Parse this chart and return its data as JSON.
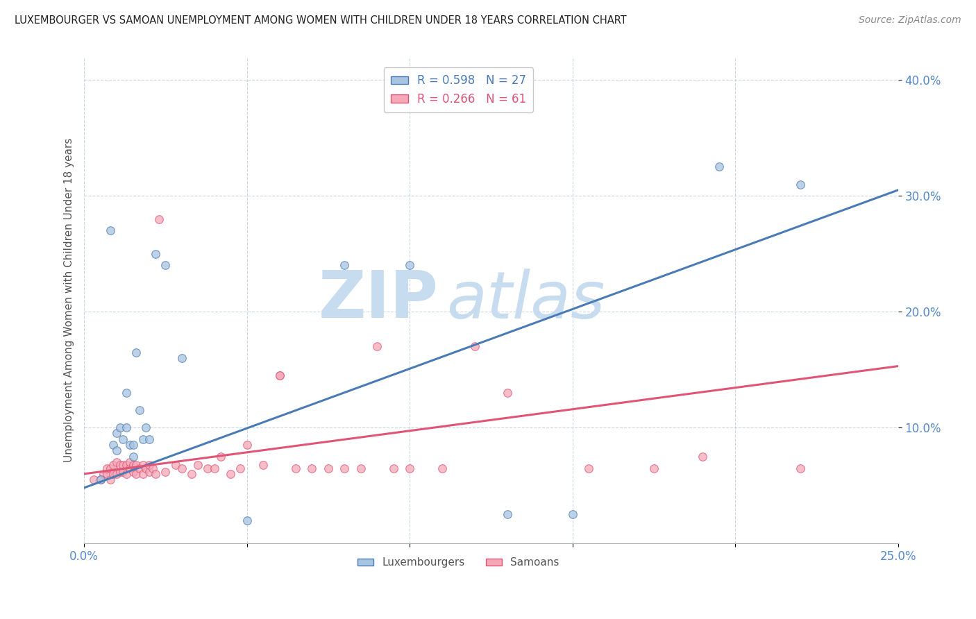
{
  "title": "LUXEMBOURGER VS SAMOAN UNEMPLOYMENT AMONG WOMEN WITH CHILDREN UNDER 18 YEARS CORRELATION CHART",
  "source": "Source: ZipAtlas.com",
  "ylabel": "Unemployment Among Women with Children Under 18 years",
  "xlim": [
    0.0,
    0.25
  ],
  "ylim": [
    0.0,
    0.42
  ],
  "xticks": [
    0.0,
    0.05,
    0.1,
    0.15,
    0.2,
    0.25
  ],
  "yticks": [
    0.1,
    0.2,
    0.3,
    0.4
  ],
  "ytick_labels": [
    "10.0%",
    "20.0%",
    "30.0%",
    "40.0%"
  ],
  "xtick_labels": [
    "0.0%",
    "",
    "",
    "",
    "",
    "25.0%"
  ],
  "blue_R": 0.598,
  "blue_N": 27,
  "pink_R": 0.266,
  "pink_N": 61,
  "blue_color": "#A8C4E0",
  "pink_color": "#F4A8B8",
  "line_blue": "#4A7BB5",
  "line_pink": "#E05575",
  "blue_scatter_x": [
    0.005,
    0.008,
    0.009,
    0.01,
    0.01,
    0.011,
    0.012,
    0.013,
    0.013,
    0.014,
    0.015,
    0.015,
    0.016,
    0.017,
    0.018,
    0.019,
    0.02,
    0.022,
    0.025,
    0.03,
    0.05,
    0.08,
    0.1,
    0.13,
    0.15,
    0.195,
    0.22
  ],
  "blue_scatter_y": [
    0.055,
    0.27,
    0.085,
    0.08,
    0.095,
    0.1,
    0.09,
    0.1,
    0.13,
    0.085,
    0.075,
    0.085,
    0.165,
    0.115,
    0.09,
    0.1,
    0.09,
    0.25,
    0.24,
    0.16,
    0.02,
    0.24,
    0.24,
    0.025,
    0.025,
    0.325,
    0.31
  ],
  "pink_scatter_x": [
    0.003,
    0.005,
    0.006,
    0.007,
    0.007,
    0.008,
    0.008,
    0.009,
    0.009,
    0.01,
    0.01,
    0.011,
    0.011,
    0.012,
    0.012,
    0.013,
    0.013,
    0.014,
    0.014,
    0.015,
    0.015,
    0.016,
    0.016,
    0.017,
    0.018,
    0.018,
    0.019,
    0.02,
    0.02,
    0.021,
    0.022,
    0.023,
    0.025,
    0.028,
    0.03,
    0.033,
    0.035,
    0.038,
    0.04,
    0.042,
    0.045,
    0.048,
    0.05,
    0.055,
    0.06,
    0.06,
    0.065,
    0.07,
    0.075,
    0.08,
    0.085,
    0.09,
    0.095,
    0.1,
    0.11,
    0.12,
    0.13,
    0.155,
    0.175,
    0.19,
    0.22
  ],
  "pink_scatter_y": [
    0.055,
    0.055,
    0.06,
    0.06,
    0.065,
    0.055,
    0.065,
    0.06,
    0.068,
    0.06,
    0.07,
    0.062,
    0.068,
    0.062,
    0.068,
    0.06,
    0.068,
    0.065,
    0.07,
    0.062,
    0.068,
    0.06,
    0.068,
    0.065,
    0.06,
    0.068,
    0.065,
    0.062,
    0.068,
    0.065,
    0.06,
    0.28,
    0.062,
    0.068,
    0.065,
    0.06,
    0.068,
    0.065,
    0.065,
    0.075,
    0.06,
    0.065,
    0.085,
    0.068,
    0.145,
    0.145,
    0.065,
    0.065,
    0.065,
    0.065,
    0.065,
    0.17,
    0.065,
    0.065,
    0.065,
    0.17,
    0.13,
    0.065,
    0.065,
    0.075,
    0.065
  ],
  "blue_line_x0": 0.0,
  "blue_line_y0": 0.048,
  "blue_line_x1": 0.25,
  "blue_line_y1": 0.305,
  "pink_line_x0": 0.0,
  "pink_line_y0": 0.06,
  "pink_line_x1": 0.25,
  "pink_line_y1": 0.153
}
